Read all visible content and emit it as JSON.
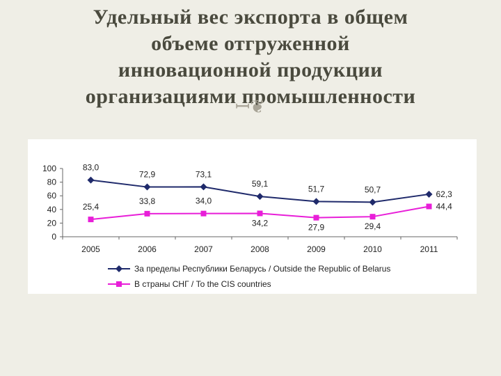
{
  "slide": {
    "title_lines": [
      "Удельный вес экспорта в общем",
      "объеме отгруженной",
      "инновационной продукции",
      "организациями промышленности"
    ],
    "ornament_icon": "decorative-swirl-icon"
  },
  "chart_data": {
    "type": "line",
    "x": [
      "2005",
      "2006",
      "2007",
      "2008",
      "2009",
      "2010",
      "2011"
    ],
    "ylim": [
      0,
      100
    ],
    "yticks": [
      "0",
      "20",
      "40",
      "60",
      "80",
      "100"
    ],
    "grid": false,
    "legend_position": "bottom",
    "series": [
      {
        "name": "За пределы Республики Беларусь / Outside the Republic of Belarus",
        "color": "#1f2a6b",
        "marker": "diamond",
        "values": [
          83.0,
          72.9,
          73.1,
          59.1,
          51.7,
          50.7,
          62.3
        ],
        "labels": [
          "83,0",
          "72,9",
          "73,1",
          "59,1",
          "51,7",
          "50,7",
          "62,3"
        ]
      },
      {
        "name": "В страны СНГ / To the CIS countries",
        "color": "#e81ed8",
        "marker": "square",
        "values": [
          25.4,
          33.8,
          34.0,
          34.2,
          27.9,
          29.4,
          44.4
        ],
        "labels": [
          "25,4",
          "33,8",
          "34,0",
          "34,2",
          "27,9",
          "29,4",
          "44,4"
        ]
      }
    ]
  }
}
